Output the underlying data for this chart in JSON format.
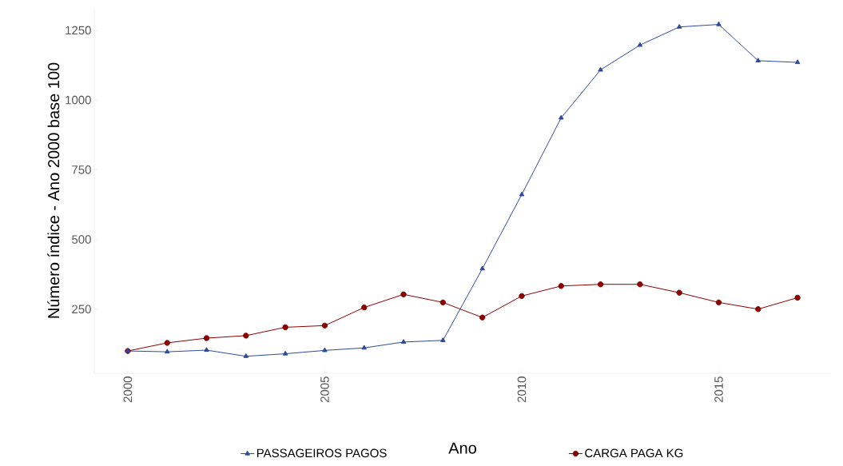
{
  "chart_data": {
    "type": "line",
    "xlabel": "Ano",
    "ylabel": "Número índice - Ano 2000 base 100",
    "x": [
      2000,
      2001,
      2002,
      2003,
      2004,
      2005,
      2006,
      2007,
      2008,
      2009,
      2010,
      2011,
      2012,
      2013,
      2014,
      2015,
      2016,
      2017
    ],
    "series": [
      {
        "name": "PASSAGEIROS PAGOS",
        "color": "#2e4a9a",
        "marker": "triangle",
        "values": [
          100,
          97,
          103,
          81,
          90,
          102,
          111,
          132,
          138,
          395,
          661,
          936,
          1108,
          1197,
          1262,
          1271,
          1141,
          1135
        ]
      },
      {
        "name": "CARGA PAGA  KG",
        "color": "#8b0000",
        "marker": "circle",
        "values": [
          100,
          129,
          146,
          155,
          185,
          191,
          256,
          303,
          274,
          220,
          297,
          333,
          339,
          339,
          309,
          274,
          250,
          291
        ]
      }
    ],
    "xlim": [
      1999.15,
      2017.85
    ],
    "ylim": [
      20,
      1330
    ],
    "xticks": [
      2000,
      2005,
      2010,
      2015
    ],
    "yticks": [
      250,
      500,
      750,
      1000,
      1250
    ],
    "grid": false,
    "legend": "bottom",
    "line_style": "solid"
  }
}
